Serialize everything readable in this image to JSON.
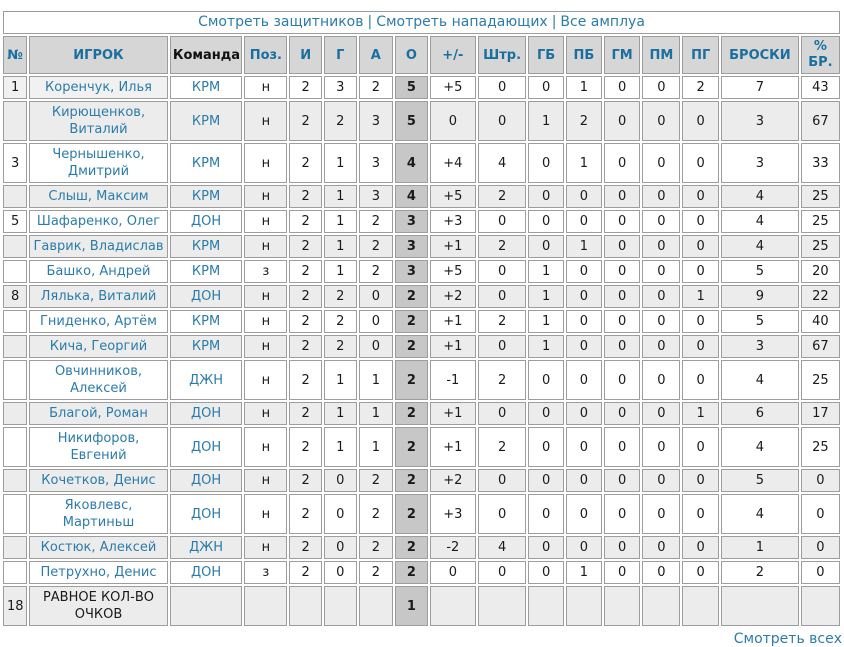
{
  "colors": {
    "link": "#2b7cab",
    "header_text": "#1a6f9e",
    "header_bg": "#d6d6d6",
    "row_alt_bg": "#ececec",
    "points_col_bg": "#c7c7c7",
    "border": "#9d9d9d"
  },
  "filters": {
    "links": [
      "Смотреть защитников",
      "Смотреть нападающих",
      "Все амплуа"
    ],
    "separator": "|"
  },
  "footer": {
    "view_all_label": "Смотреть всех"
  },
  "table": {
    "columns": [
      {
        "key": "rank",
        "label": "№",
        "sortable": true
      },
      {
        "key": "player",
        "label": "ИГРОК",
        "sortable": true
      },
      {
        "key": "team",
        "label": "Команда",
        "sortable": false
      },
      {
        "key": "pos",
        "label": "Поз.",
        "sortable": true
      },
      {
        "key": "games",
        "label": "И",
        "sortable": true
      },
      {
        "key": "goals",
        "label": "Г",
        "sortable": true
      },
      {
        "key": "assists",
        "label": "А",
        "sortable": true
      },
      {
        "key": "points",
        "label": "О",
        "sortable": true
      },
      {
        "key": "plus-minus",
        "label": "+/-",
        "sortable": true
      },
      {
        "key": "penalty",
        "label": "Штр.",
        "sortable": true
      },
      {
        "key": "pp-goals",
        "label": "ГБ",
        "sortable": true
      },
      {
        "key": "pp-assists",
        "label": "ПБ",
        "sortable": true
      },
      {
        "key": "sh-goals",
        "label": "ГМ",
        "sortable": true
      },
      {
        "key": "sh-assists",
        "label": "ПМ",
        "sortable": true
      },
      {
        "key": "gw-goals",
        "label": "ПГ",
        "sortable": true
      },
      {
        "key": "shots",
        "label": "БРОСКИ",
        "sortable": true
      },
      {
        "key": "shot-pct",
        "label": "% БР.",
        "sortable": true
      }
    ],
    "rows": [
      {
        "hl": true,
        "cells": [
          "1",
          "Коренчук, Илья",
          "КРМ",
          "н",
          "2",
          "3",
          "2",
          "5",
          "+5",
          "0",
          "0",
          "1",
          "0",
          "0",
          "2",
          "7",
          "43"
        ]
      },
      {
        "cells": [
          "",
          "Кирющенков, Виталий",
          "КРМ",
          "н",
          "2",
          "2",
          "3",
          "5",
          "0",
          "0",
          "1",
          "2",
          "0",
          "0",
          "0",
          "3",
          "67"
        ]
      },
      {
        "cells": [
          "3",
          "Чернышенко, Дмитрий",
          "КРМ",
          "н",
          "2",
          "1",
          "3",
          "4",
          "+4",
          "4",
          "0",
          "1",
          "0",
          "0",
          "0",
          "3",
          "33"
        ]
      },
      {
        "cells": [
          "",
          "Слыш, Максим",
          "КРМ",
          "н",
          "2",
          "1",
          "3",
          "4",
          "+5",
          "2",
          "0",
          "0",
          "0",
          "0",
          "0",
          "4",
          "25"
        ]
      },
      {
        "cells": [
          "5",
          "Шафаренко, Олег",
          "ДОН",
          "н",
          "2",
          "1",
          "2",
          "3",
          "+3",
          "0",
          "0",
          "0",
          "0",
          "0",
          "0",
          "4",
          "25"
        ]
      },
      {
        "cells": [
          "",
          "Гаврик, Владислав",
          "КРМ",
          "н",
          "2",
          "1",
          "2",
          "3",
          "+1",
          "2",
          "0",
          "1",
          "0",
          "0",
          "0",
          "4",
          "25"
        ]
      },
      {
        "cells": [
          "",
          "Башко, Андрей",
          "КРМ",
          "з",
          "2",
          "1",
          "2",
          "3",
          "+5",
          "0",
          "1",
          "0",
          "0",
          "0",
          "0",
          "5",
          "20"
        ]
      },
      {
        "cells": [
          "8",
          "Лялька, Виталий",
          "ДОН",
          "н",
          "2",
          "2",
          "0",
          "2",
          "+2",
          "0",
          "1",
          "0",
          "0",
          "0",
          "1",
          "9",
          "22"
        ]
      },
      {
        "cells": [
          "",
          "Гниденко, Артём",
          "КРМ",
          "н",
          "2",
          "2",
          "0",
          "2",
          "+1",
          "2",
          "1",
          "0",
          "0",
          "0",
          "0",
          "5",
          "40"
        ]
      },
      {
        "cells": [
          "",
          "Кича, Георгий",
          "КРМ",
          "н",
          "2",
          "2",
          "0",
          "2",
          "+1",
          "0",
          "1",
          "0",
          "0",
          "0",
          "0",
          "3",
          "67"
        ]
      },
      {
        "cells": [
          "",
          "Овчинников, Алексей",
          "ДЖН",
          "н",
          "2",
          "1",
          "1",
          "2",
          "-1",
          "2",
          "0",
          "0",
          "0",
          "0",
          "0",
          "4",
          "25"
        ]
      },
      {
        "cells": [
          "",
          "Благой, Роман",
          "ДОН",
          "н",
          "2",
          "1",
          "1",
          "2",
          "+1",
          "0",
          "0",
          "0",
          "0",
          "0",
          "1",
          "6",
          "17"
        ]
      },
      {
        "cells": [
          "",
          "Никифоров, Евгений",
          "ДОН",
          "н",
          "2",
          "1",
          "1",
          "2",
          "+1",
          "2",
          "0",
          "0",
          "0",
          "0",
          "0",
          "4",
          "25"
        ]
      },
      {
        "cells": [
          "",
          "Кочетков, Денис",
          "ДОН",
          "н",
          "2",
          "0",
          "2",
          "2",
          "+2",
          "0",
          "0",
          "0",
          "0",
          "0",
          "0",
          "5",
          "0"
        ]
      },
      {
        "cells": [
          "",
          "Яковлевс, Мартиньш",
          "ДОН",
          "н",
          "2",
          "0",
          "2",
          "2",
          "+3",
          "0",
          "0",
          "0",
          "0",
          "0",
          "0",
          "4",
          "0"
        ]
      },
      {
        "cells": [
          "",
          "Костюк, Алексей",
          "ДЖН",
          "н",
          "2",
          "0",
          "2",
          "2",
          "-2",
          "4",
          "0",
          "0",
          "0",
          "0",
          "0",
          "1",
          "0"
        ]
      },
      {
        "cells": [
          "",
          "Петрухно, Денис",
          "ДОН",
          "з",
          "2",
          "0",
          "2",
          "2",
          "0",
          "0",
          "0",
          "1",
          "0",
          "0",
          "0",
          "2",
          "0"
        ]
      },
      {
        "link": false,
        "cells": [
          "18",
          "РАВНОЕ КОЛ-ВО ОЧКОВ",
          "",
          "",
          "",
          "",
          "",
          "1",
          "",
          "",
          "",
          "",
          "",
          "",
          "",
          "",
          ""
        ]
      }
    ]
  }
}
